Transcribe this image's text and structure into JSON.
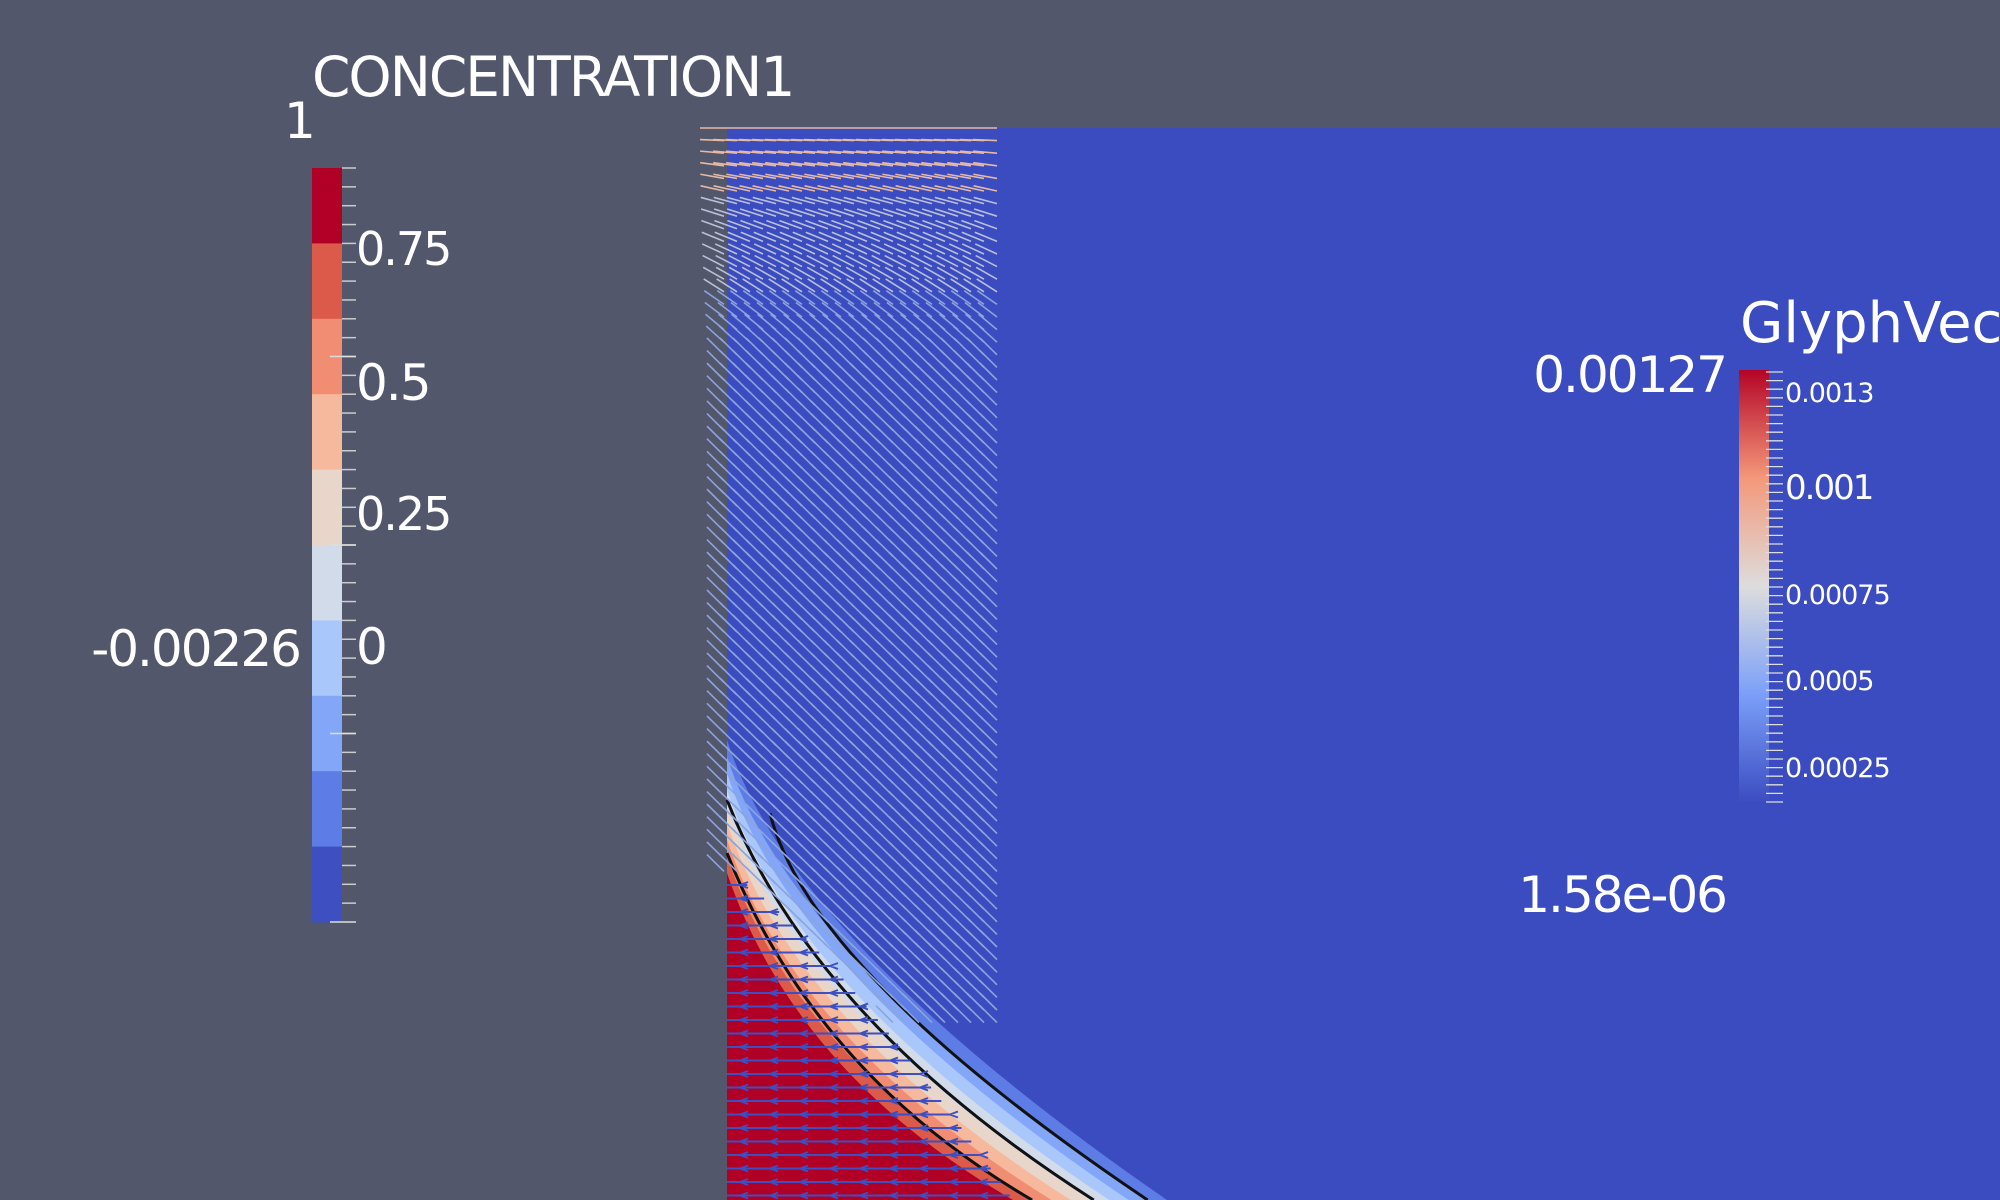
{
  "concentration_legend": {
    "title": "CONCENTRATION1",
    "range_max": "1",
    "range_min": "-0.00226",
    "tick_labels": [
      "0.75",
      "0.5",
      "0.25",
      "0"
    ],
    "tick_values": [
      0.75,
      0.5,
      0.25,
      0
    ],
    "colors": [
      "#b00026",
      "#dc5a4a",
      "#f08d72",
      "#f7b99d",
      "#e9d6ca",
      "#d1dbea",
      "#aac7fc",
      "#84a6f8",
      "#5d7ce6",
      "#3d4fc1"
    ]
  },
  "glyph_legend": {
    "title": "GlyphVector",
    "range_max": "0.00127",
    "range_min": "1.58e-06",
    "tick_labels": [
      "0.0013",
      "0.001",
      "0.00075",
      "0.0005",
      "0.00025"
    ],
    "tick_values": [
      0.0013,
      0.001,
      0.00075,
      0.0005,
      0.00025
    ]
  },
  "colors": {
    "background": "#52576b",
    "domain_blue": "#3b4cc0",
    "domain_red": "#b00026",
    "contour": "#111111"
  }
}
